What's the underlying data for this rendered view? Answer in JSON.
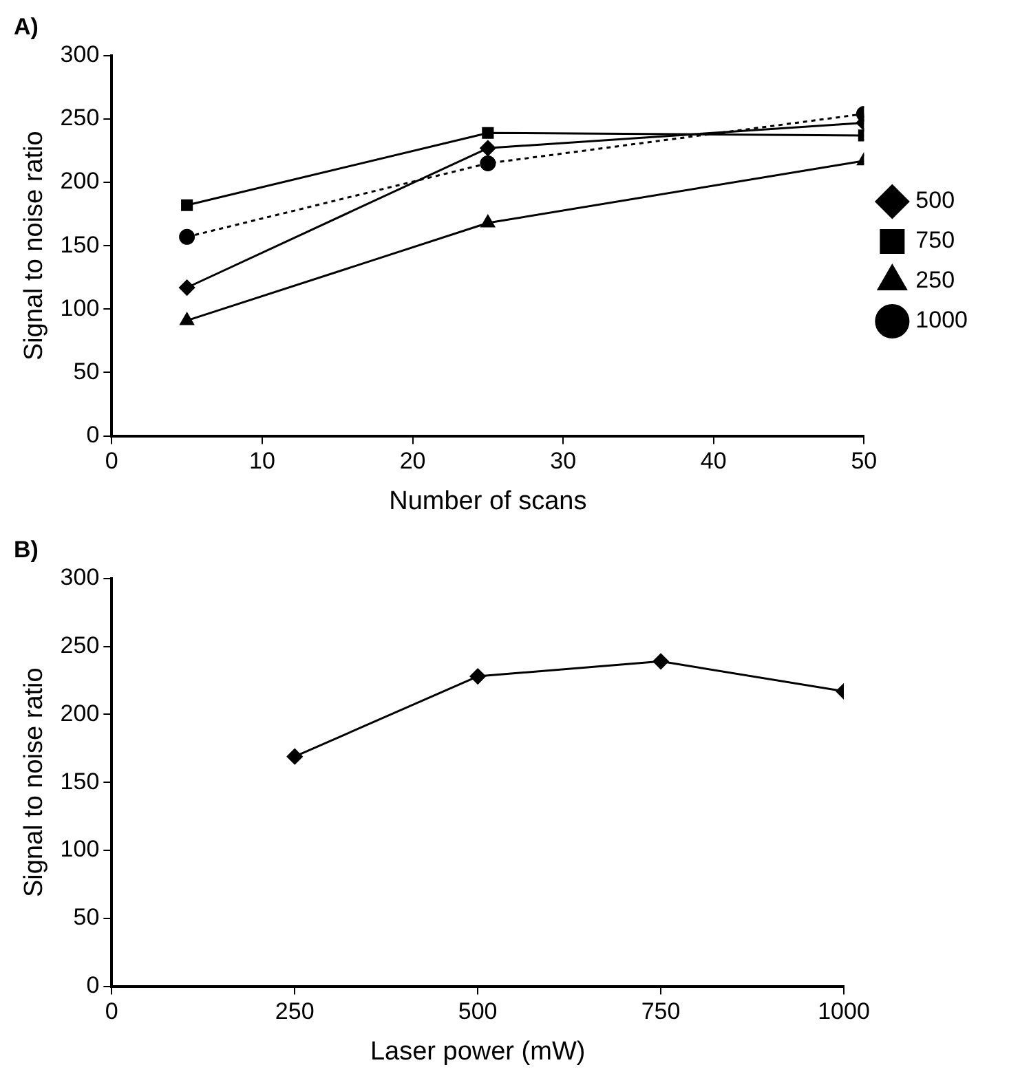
{
  "chart_data": [
    {
      "type": "line",
      "title": "A)",
      "xlabel": "Number of scans",
      "ylabel": "Signal to noise ratio",
      "x": [
        5,
        25,
        50
      ],
      "xlim": [
        0,
        50
      ],
      "xticks": [
        0,
        10,
        20,
        30,
        40,
        50
      ],
      "ylim": [
        0,
        300
      ],
      "yticks": [
        0,
        50,
        100,
        150,
        200,
        250,
        300
      ],
      "grid": false,
      "legend": "right",
      "series": [
        {
          "name": "500",
          "color": "#000000",
          "marker": "diamond",
          "line_style": "solid",
          "values": [
            117,
            227,
            247
          ]
        },
        {
          "name": "750",
          "color": "#000000",
          "marker": "square",
          "line_style": "solid",
          "values": [
            182,
            239,
            237
          ]
        },
        {
          "name": "250",
          "color": "#000000",
          "marker": "triangle",
          "line_style": "solid",
          "values": [
            91,
            168,
            217
          ]
        },
        {
          "name": "1000",
          "color": "#000000",
          "marker": "circle",
          "line_style": "dotted",
          "values": [
            157,
            215,
            254
          ]
        }
      ]
    },
    {
      "type": "line",
      "title": "B)",
      "xlabel": "Laser power (mW)",
      "ylabel": "Signal to noise ratio",
      "x": [
        250,
        500,
        750,
        1000
      ],
      "xlim": [
        0,
        1000
      ],
      "xticks": [
        0,
        250,
        500,
        750,
        1000
      ],
      "ylim": [
        0,
        300
      ],
      "yticks": [
        0,
        50,
        100,
        150,
        200,
        250,
        300
      ],
      "grid": false,
      "legend": false,
      "marker": "diamond",
      "line_style": "solid",
      "series": [
        {
          "color": "#000000",
          "values": [
            169,
            228,
            239,
            217
          ]
        }
      ]
    }
  ]
}
